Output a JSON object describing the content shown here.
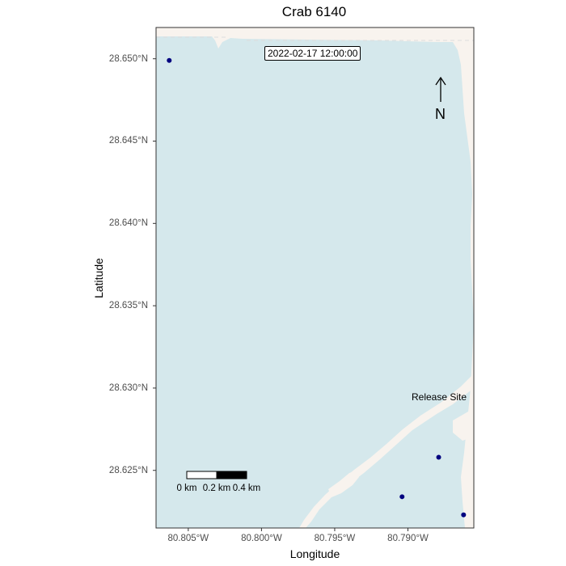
{
  "chart_data": {
    "type": "map",
    "title": "Crab 6140",
    "xlabel": "Longitude",
    "ylabel": "Latitude",
    "xlim": [
      -80.8072,
      -80.7855
    ],
    "ylim": [
      28.6215,
      28.6519
    ],
    "x_ticks": [
      {
        "value": -80.805,
        "label": "80.805°W"
      },
      {
        "value": -80.8,
        "label": "80.800°W"
      },
      {
        "value": -80.795,
        "label": "80.795°W"
      },
      {
        "value": -80.79,
        "label": "80.790°W"
      }
    ],
    "y_ticks": [
      {
        "value": 28.65,
        "label": "28.650°N"
      },
      {
        "value": 28.645,
        "label": "28.645°N"
      },
      {
        "value": 28.64,
        "label": "28.640°N"
      },
      {
        "value": 28.635,
        "label": "28.635°N"
      },
      {
        "value": 28.63,
        "label": "28.630°N"
      },
      {
        "value": 28.625,
        "label": "28.625°N"
      }
    ],
    "points": [
      {
        "lon": -80.8063,
        "lat": 28.6499
      },
      {
        "lon": -80.7879,
        "lat": 28.6258
      },
      {
        "lon": -80.7904,
        "lat": 28.6234
      },
      {
        "lon": -80.7862,
        "lat": 28.6223
      }
    ],
    "release_site": {
      "label": "Release Site"
    },
    "timestamp": "2022-02-17 12:00:00",
    "north_arrow": {
      "label": "N"
    },
    "scale_bar": {
      "labels": [
        "0 km",
        "0.2 km",
        "0.4 km"
      ]
    },
    "colors": {
      "water": "#d5e8ec",
      "land": "#f8f3ee",
      "points": "#00007f",
      "panel_border": "#333333"
    }
  }
}
